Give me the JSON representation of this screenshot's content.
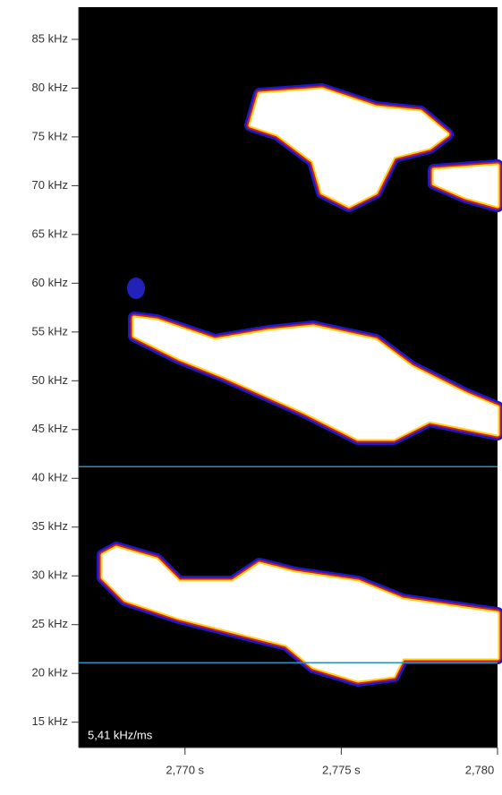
{
  "chart_data": {
    "type": "spectrogram",
    "annotation": "5,41 kHz/ms",
    "ylim": [
      12.4,
      88.3
    ],
    "yticks": [
      {
        "value": 15,
        "label": "15 kHz"
      },
      {
        "value": 20,
        "label": "20 kHz"
      },
      {
        "value": 25,
        "label": "25 kHz"
      },
      {
        "value": 30,
        "label": "30 kHz"
      },
      {
        "value": 35,
        "label": "35 kHz"
      },
      {
        "value": 40,
        "label": "40 kHz"
      },
      {
        "value": 45,
        "label": "45 kHz"
      },
      {
        "value": 50,
        "label": "50 kHz"
      },
      {
        "value": 55,
        "label": "55 kHz"
      },
      {
        "value": 60,
        "label": "60 kHz"
      },
      {
        "value": 65,
        "label": "65 kHz"
      },
      {
        "value": 70,
        "label": "70 kHz"
      },
      {
        "value": 75,
        "label": "75 kHz"
      },
      {
        "value": 80,
        "label": "80 kHz"
      },
      {
        "value": 85,
        "label": "85 kHz"
      }
    ],
    "xlim": [
      2.7666,
      2.78
    ],
    "xticks": [
      {
        "value": 2.77,
        "label": "2,770 s"
      },
      {
        "value": 2.775,
        "label": "2,775 s"
      },
      {
        "value": 2.78,
        "label": "2,780"
      }
    ],
    "hlines": [
      41.2,
      21.1
    ],
    "hline_color": "#2a8fc0"
  }
}
